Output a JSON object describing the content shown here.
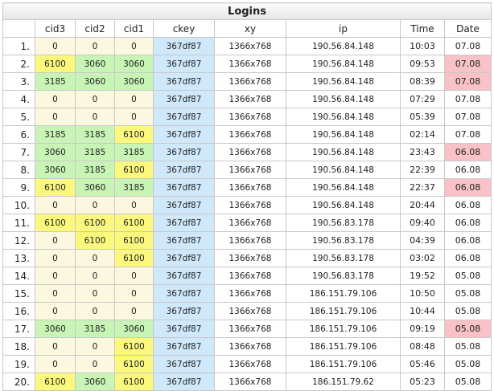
{
  "table": {
    "title": "Logins",
    "columns": [
      "",
      "cid3",
      "cid2",
      "cid1",
      "ckey",
      "xy",
      "ip",
      "Time",
      "Date"
    ],
    "rows": [
      {
        "n": "1.",
        "cid3": "0",
        "cid2": "0",
        "cid1": "0",
        "ckey": "367df87",
        "xy": "1366x768",
        "ip": "190.56.84.148",
        "time": "10:03",
        "date": "07.08"
      },
      {
        "n": "2.",
        "cid3": "6100",
        "cid2": "3060",
        "cid1": "3060",
        "ckey": "367df87",
        "xy": "1366x768",
        "ip": "190.56.84.148",
        "time": "09:53",
        "date": "07.08"
      },
      {
        "n": "3.",
        "cid3": "3185",
        "cid2": "3060",
        "cid1": "3060",
        "ckey": "367df87",
        "xy": "1366x768",
        "ip": "190.56.84.148",
        "time": "08:39",
        "date": "07.08"
      },
      {
        "n": "4.",
        "cid3": "0",
        "cid2": "0",
        "cid1": "0",
        "ckey": "367df87",
        "xy": "1366x768",
        "ip": "190.56.84.148",
        "time": "07:29",
        "date": "07.08"
      },
      {
        "n": "5.",
        "cid3": "0",
        "cid2": "0",
        "cid1": "0",
        "ckey": "367df87",
        "xy": "1366x768",
        "ip": "190.56.84.148",
        "time": "05:39",
        "date": "07.08"
      },
      {
        "n": "6.",
        "cid3": "3185",
        "cid2": "3185",
        "cid1": "6100",
        "ckey": "367df87",
        "xy": "1366x768",
        "ip": "190.56.84.148",
        "time": "02:14",
        "date": "07.08"
      },
      {
        "n": "7.",
        "cid3": "3060",
        "cid2": "3185",
        "cid1": "3185",
        "ckey": "367df87",
        "xy": "1366x768",
        "ip": "190.56.84.148",
        "time": "23:43",
        "date": "06.08"
      },
      {
        "n": "8.",
        "cid3": "3060",
        "cid2": "3185",
        "cid1": "6100",
        "ckey": "367df87",
        "xy": "1366x768",
        "ip": "190.56.84.148",
        "time": "22:39",
        "date": "06.08"
      },
      {
        "n": "9.",
        "cid3": "6100",
        "cid2": "3060",
        "cid1": "3185",
        "ckey": "367df87",
        "xy": "1366x768",
        "ip": "190.56.84.148",
        "time": "22:37",
        "date": "06.08"
      },
      {
        "n": "10.",
        "cid3": "0",
        "cid2": "0",
        "cid1": "0",
        "ckey": "367df87",
        "xy": "1366x768",
        "ip": "190.56.84.148",
        "time": "20:44",
        "date": "06.08"
      },
      {
        "n": "11.",
        "cid3": "6100",
        "cid2": "6100",
        "cid1": "6100",
        "ckey": "367df87",
        "xy": "1366x768",
        "ip": "190.56.83.178",
        "time": "09:40",
        "date": "06.08"
      },
      {
        "n": "12.",
        "cid3": "0",
        "cid2": "6100",
        "cid1": "6100",
        "ckey": "367df87",
        "xy": "1366x768",
        "ip": "190.56.83.178",
        "time": "04:39",
        "date": "06.08"
      },
      {
        "n": "13.",
        "cid3": "0",
        "cid2": "0",
        "cid1": "6100",
        "ckey": "367df87",
        "xy": "1366x768",
        "ip": "190.56.83.178",
        "time": "03:02",
        "date": "06.08"
      },
      {
        "n": "14.",
        "cid3": "0",
        "cid2": "0",
        "cid1": "0",
        "ckey": "367df87",
        "xy": "1366x768",
        "ip": "190.56.83.178",
        "time": "19:52",
        "date": "05.08"
      },
      {
        "n": "15.",
        "cid3": "0",
        "cid2": "0",
        "cid1": "0",
        "ckey": "367df87",
        "xy": "1366x768",
        "ip": "186.151.79.106",
        "time": "10:50",
        "date": "05.08"
      },
      {
        "n": "16.",
        "cid3": "0",
        "cid2": "0",
        "cid1": "0",
        "ckey": "367df87",
        "xy": "1366x768",
        "ip": "186.151.79.106",
        "time": "10:44",
        "date": "05.08"
      },
      {
        "n": "17.",
        "cid3": "3060",
        "cid2": "3185",
        "cid1": "3060",
        "ckey": "367df87",
        "xy": "1366x768",
        "ip": "186.151.79.106",
        "time": "09:19",
        "date": "05.08"
      },
      {
        "n": "18.",
        "cid3": "0",
        "cid2": "0",
        "cid1": "6100",
        "ckey": "367df87",
        "xy": "1366x768",
        "ip": "186.151.79.106",
        "time": "08:48",
        "date": "05.08"
      },
      {
        "n": "19.",
        "cid3": "0",
        "cid2": "0",
        "cid1": "6100",
        "ckey": "367df87",
        "xy": "1366x768",
        "ip": "186.151.79.106",
        "time": "05:46",
        "date": "05.08"
      },
      {
        "n": "20.",
        "cid3": "6100",
        "cid2": "3060",
        "cid1": "6100",
        "ckey": "367df87",
        "xy": "1366x768",
        "ip": "186.151.79.62",
        "time": "05:23",
        "date": "05.08"
      }
    ],
    "highlighted_dates_rows": [
      2,
      3,
      7,
      9,
      17
    ],
    "colors": {
      "zero_cell": "#fcf7df",
      "value_6100": "#fbf87d",
      "value_other": "#c8f5b6",
      "ckey_cell": "#cfe9fb",
      "date_highlight": "#f9c2c6",
      "border": "#c8c8c8"
    }
  }
}
